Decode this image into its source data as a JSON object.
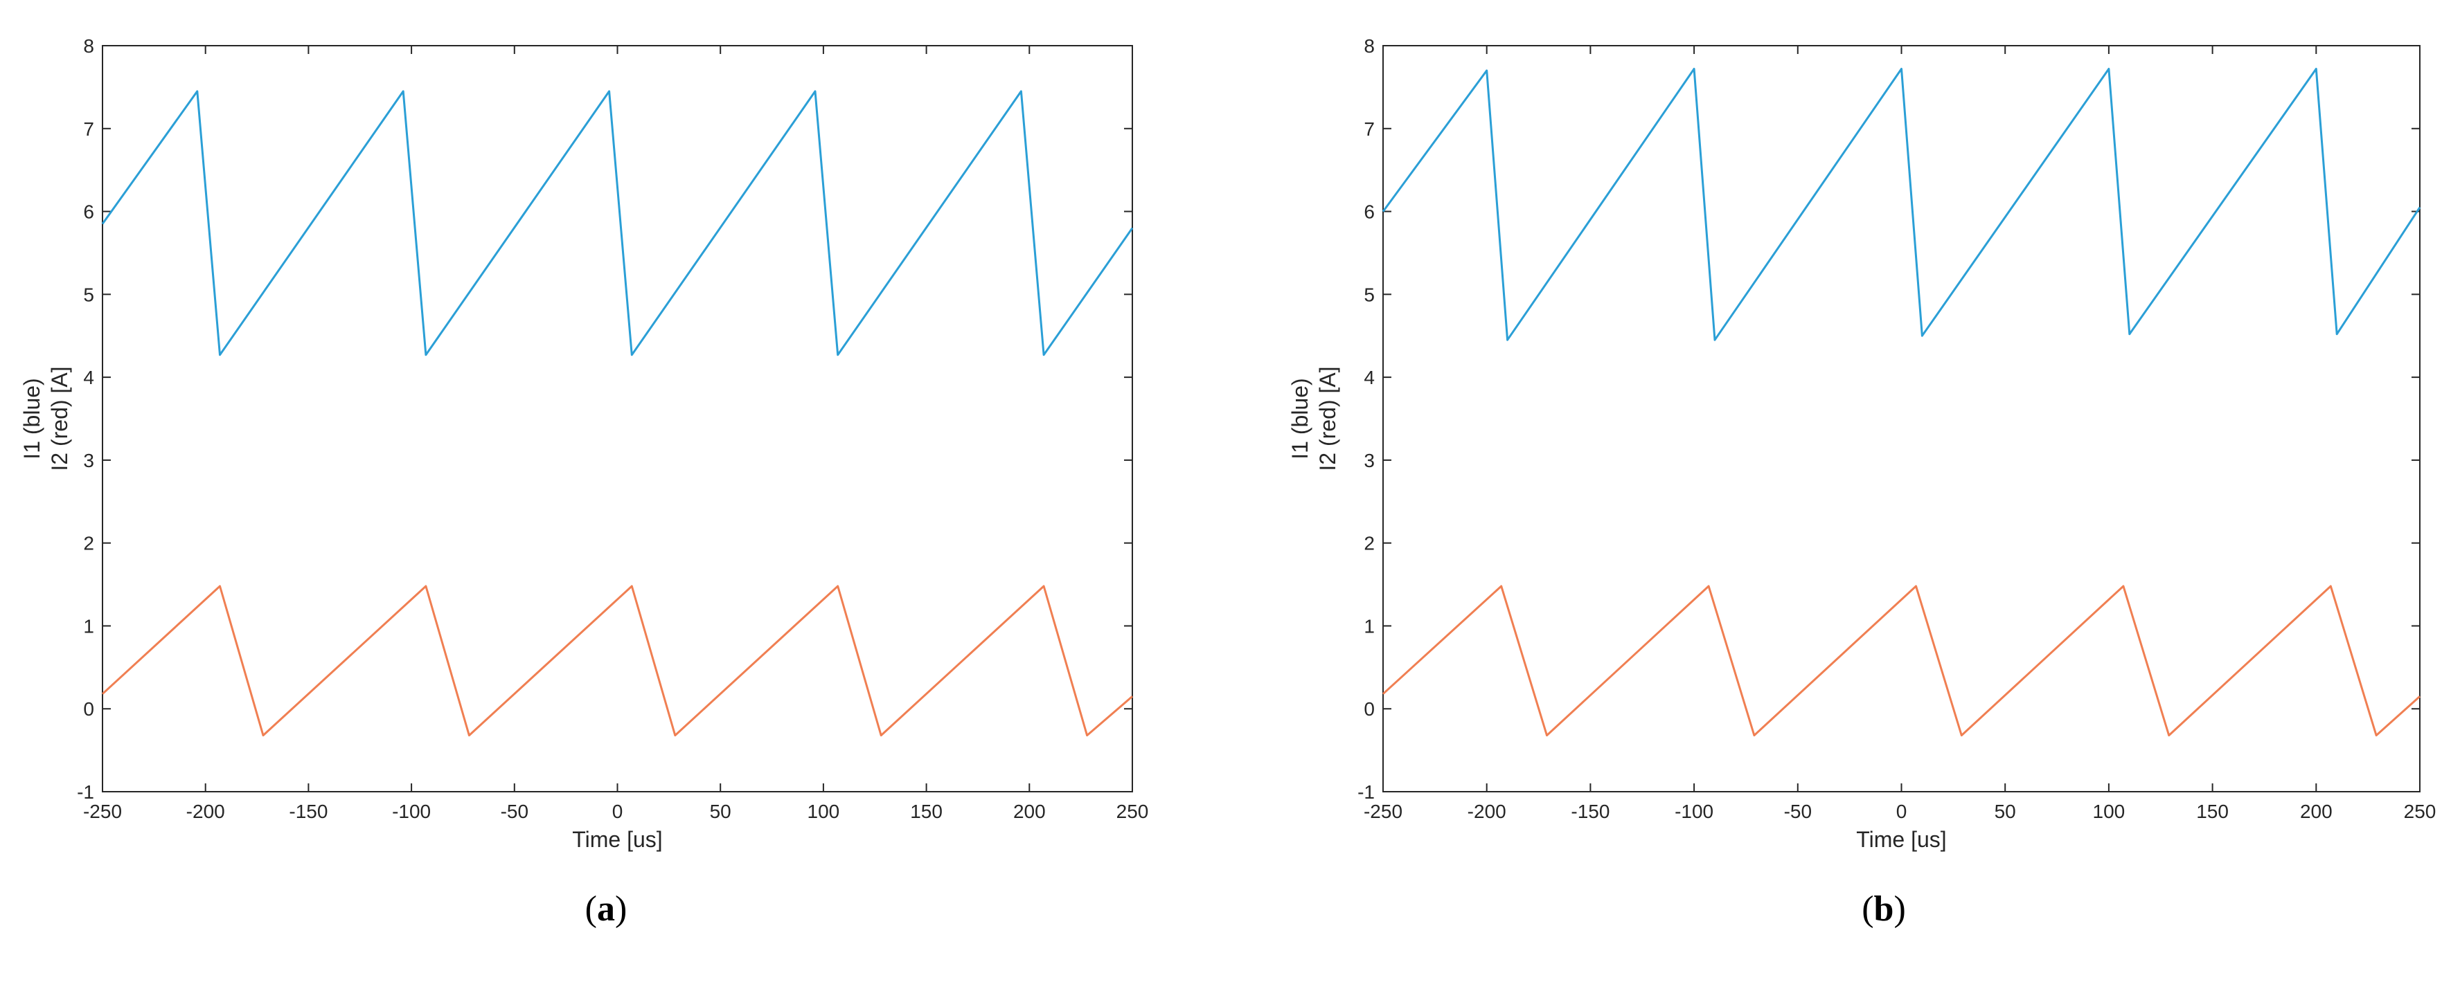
{
  "figure": {
    "panels": [
      "(a)",
      "(b)"
    ]
  },
  "chart_data": [
    {
      "type": "line",
      "panel_label": "(a)",
      "title": "",
      "xlabel": "Time [us]",
      "ylabel_lines": [
        "I1 (blue)",
        "I2 (red) [A]"
      ],
      "xlim": [
        -250,
        250
      ],
      "ylim": [
        -1,
        8
      ],
      "xticks": [
        -250,
        -200,
        -150,
        -100,
        -50,
        0,
        50,
        100,
        150,
        200,
        250
      ],
      "yticks": [
        -1,
        0,
        1,
        2,
        3,
        4,
        5,
        6,
        7,
        8
      ],
      "grid": false,
      "legend": "none",
      "series": [
        {
          "color": "#2b9fd6",
          "x": [
            -250,
            -204,
            -193,
            -104,
            -93,
            -4,
            7,
            96,
            107,
            196,
            207,
            250
          ],
          "y": [
            5.85,
            7.45,
            4.27,
            7.45,
            4.27,
            7.45,
            4.27,
            7.45,
            4.27,
            7.45,
            4.27,
            5.8
          ]
        },
        {
          "color": "#f07f52",
          "x": [
            -250,
            -193,
            -172,
            -93,
            -72,
            7,
            28,
            107,
            128,
            207,
            228,
            250
          ],
          "y": [
            0.18,
            1.48,
            -0.32,
            1.48,
            -0.32,
            1.48,
            -0.32,
            1.48,
            -0.32,
            1.48,
            -0.32,
            0.15
          ]
        }
      ]
    },
    {
      "type": "line",
      "panel_label": "(b)",
      "title": "",
      "xlabel": "Time [us]",
      "ylabel_lines": [
        "I1 (blue)",
        "I2 (red) [A]"
      ],
      "xlim": [
        -250,
        250
      ],
      "ylim": [
        -1,
        8
      ],
      "xticks": [
        -250,
        -200,
        -150,
        -100,
        -50,
        0,
        50,
        100,
        150,
        200,
        250
      ],
      "yticks": [
        -1,
        0,
        1,
        2,
        3,
        4,
        5,
        6,
        7,
        8
      ],
      "grid": false,
      "legend": "none",
      "series": [
        {
          "color": "#2b9fd6",
          "x": [
            -250,
            -200,
            -190,
            -100,
            -90,
            0,
            10,
            100,
            110,
            200,
            210,
            250
          ],
          "y": [
            6.0,
            7.7,
            4.45,
            7.72,
            4.45,
            7.72,
            4.5,
            7.72,
            4.52,
            7.72,
            4.52,
            6.05
          ]
        },
        {
          "color": "#f07f52",
          "x": [
            -250,
            -193,
            -171,
            -93,
            -71,
            7,
            29,
            107,
            129,
            207,
            229,
            250
          ],
          "y": [
            0.18,
            1.48,
            -0.32,
            1.48,
            -0.32,
            1.48,
            -0.32,
            1.48,
            -0.32,
            1.48,
            -0.32,
            0.15
          ]
        }
      ]
    }
  ]
}
